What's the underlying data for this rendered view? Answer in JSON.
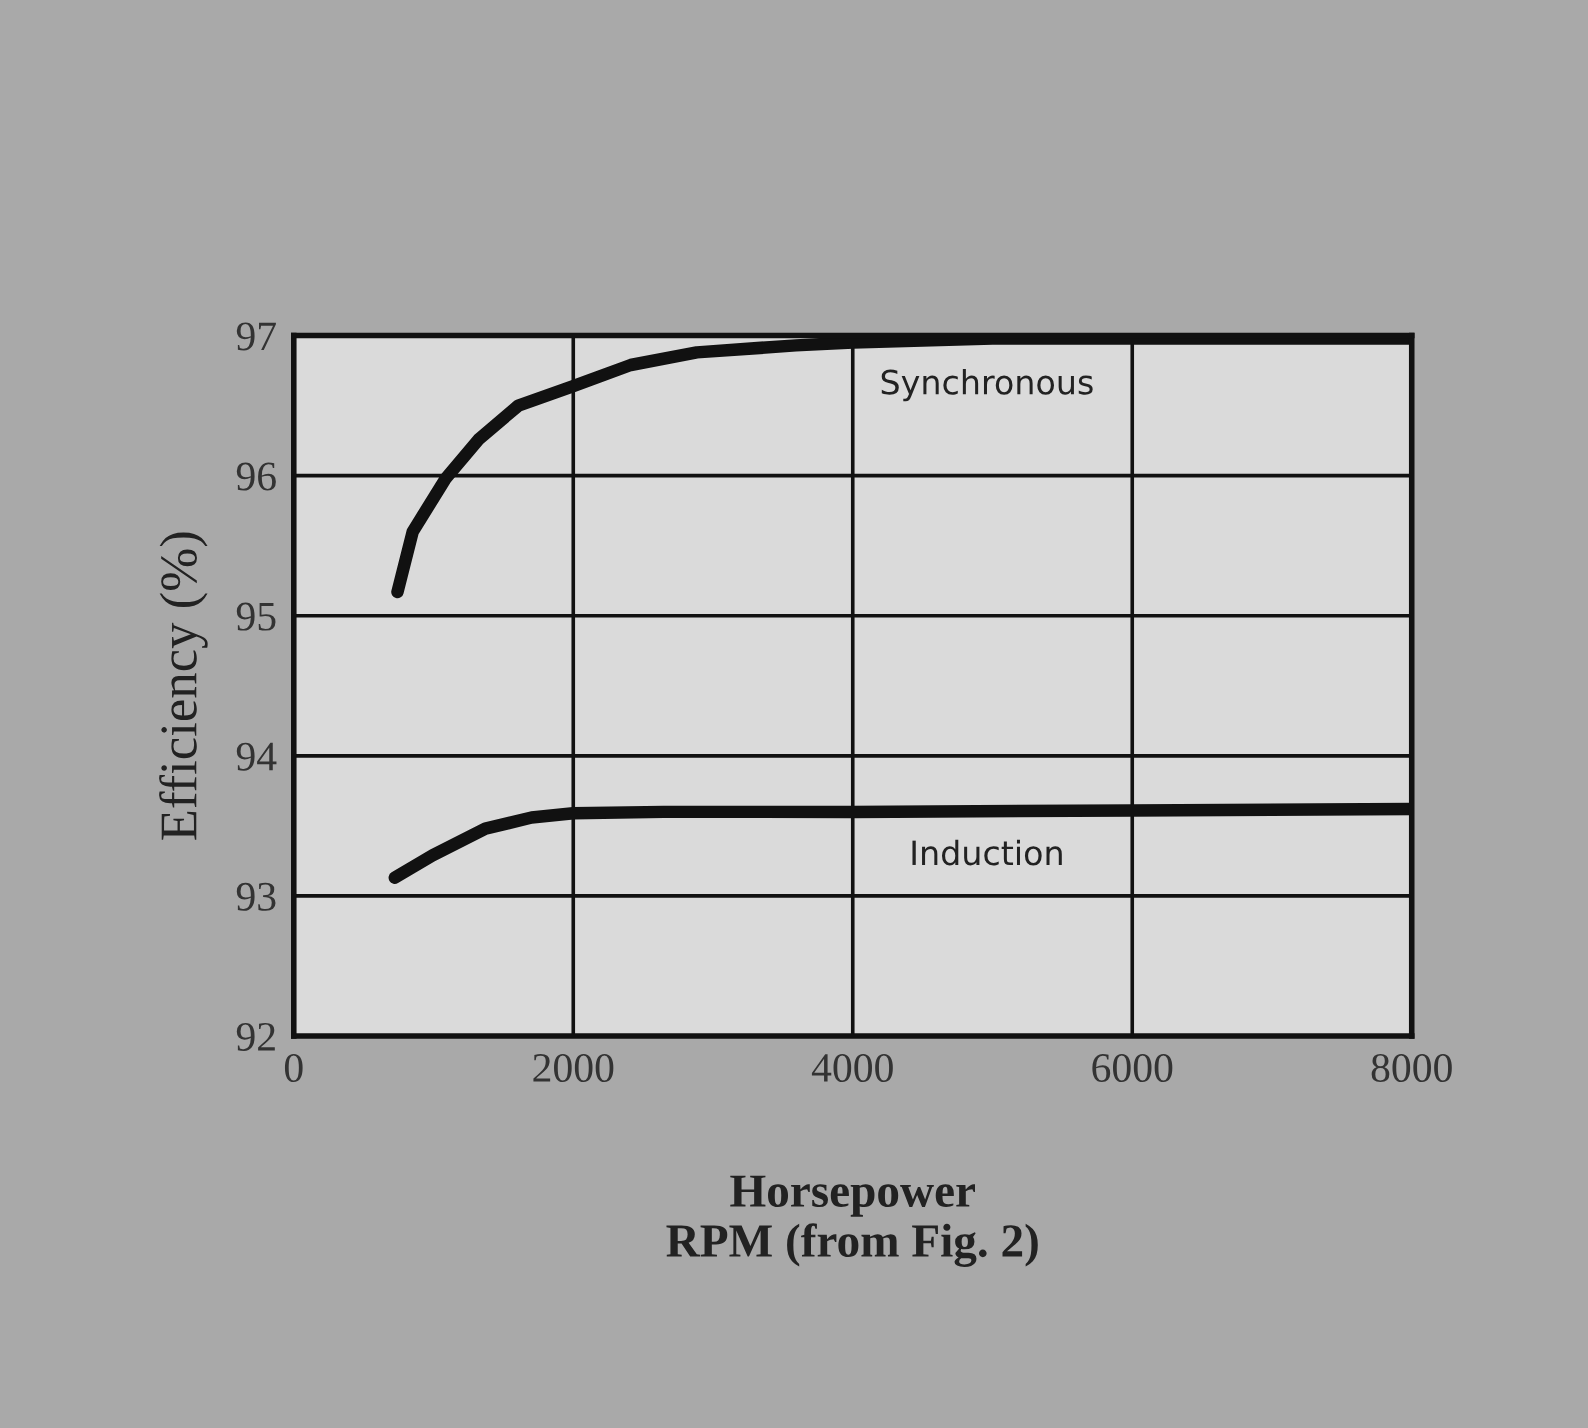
{
  "chart_data": {
    "type": "line",
    "xlabel": "Horsepower\nRPM (from Fig. 2)",
    "ylabel": "Efficiency (%)",
    "xlim": [
      0,
      8000
    ],
    "ylim": [
      92,
      97
    ],
    "xticks": [
      0,
      2000,
      4000,
      6000,
      8000
    ],
    "yticks": [
      92,
      93,
      94,
      95,
      96,
      97
    ],
    "grid": true,
    "legend": false,
    "marker": "none",
    "line_style": "solid",
    "series": [
      {
        "name": "Synchronous",
        "color": "#111111",
        "x": [
          742,
          851,
          1087,
          1324,
          1607,
          2000,
          2411,
          2884,
          3593,
          4000,
          5000,
          6000,
          7000,
          8000
        ],
        "values": [
          95.17,
          95.6,
          95.98,
          96.26,
          96.5,
          96.64,
          96.79,
          96.88,
          96.93,
          96.95,
          96.98,
          96.98,
          96.98,
          96.98
        ]
      },
      {
        "name": "Induction",
        "color": "#111111",
        "x": [
          723,
          993,
          1371,
          1702,
          2000,
          2648,
          4000,
          6000,
          8000
        ],
        "values": [
          93.13,
          93.29,
          93.48,
          93.56,
          93.59,
          93.6,
          93.6,
          93.61,
          93.62
        ]
      }
    ]
  }
}
